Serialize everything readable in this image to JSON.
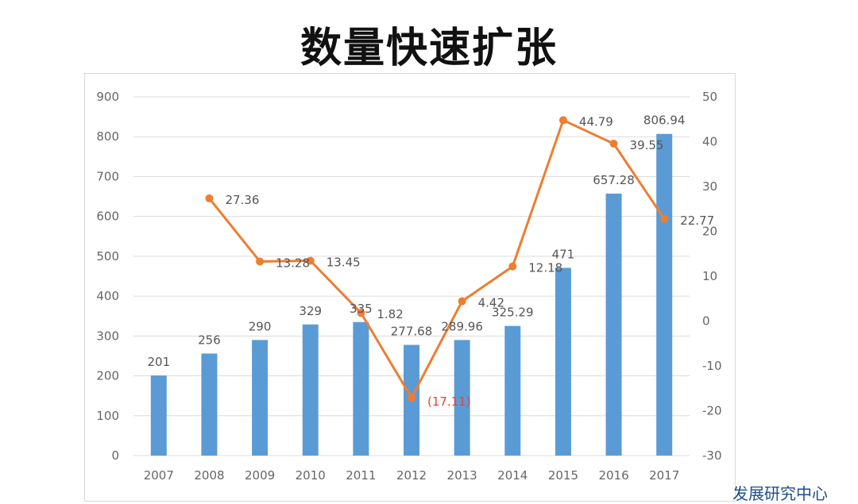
{
  "title": "数量快速扩张",
  "watermark": "发展研究中心",
  "chart_data": {
    "type": "bar+line",
    "categories": [
      "2007",
      "2008",
      "2009",
      "2010",
      "2011",
      "2012",
      "2013",
      "2014",
      "2015",
      "2016",
      "2017"
    ],
    "series": [
      {
        "type": "bar",
        "axis": "left",
        "color": "#5b9bd5",
        "values": [
          201,
          256,
          290,
          329,
          335,
          277.68,
          289.96,
          325.29,
          471,
          657.28,
          806.94
        ],
        "labels": [
          "201",
          "256",
          "290",
          "329",
          "335",
          "277.68",
          "289.96",
          "325.29",
          "471",
          "657.28",
          "806.94"
        ]
      },
      {
        "type": "line",
        "axis": "right",
        "color": "#ed7d31",
        "values": [
          null,
          27.36,
          13.28,
          13.45,
          1.82,
          -17.11,
          4.42,
          12.18,
          44.79,
          39.55,
          22.77
        ],
        "labels": [
          "",
          "27.36",
          "13.28",
          "13.45",
          "1.82",
          "(17.11)",
          "4.42",
          "12.18",
          "44.79",
          "39.55",
          "22.77"
        ]
      }
    ],
    "left_axis": {
      "ylim": [
        0,
        900
      ],
      "ticks": [
        "0",
        "100",
        "200",
        "300",
        "400",
        "500",
        "600",
        "700",
        "800",
        "900"
      ]
    },
    "right_axis": {
      "ylim": [
        -30,
        50
      ],
      "ticks": [
        "-30",
        "-20",
        "-10",
        "0",
        "10",
        "20",
        "30",
        "40",
        "50"
      ]
    },
    "grid": true,
    "negative_label_color": "#e0443a"
  }
}
